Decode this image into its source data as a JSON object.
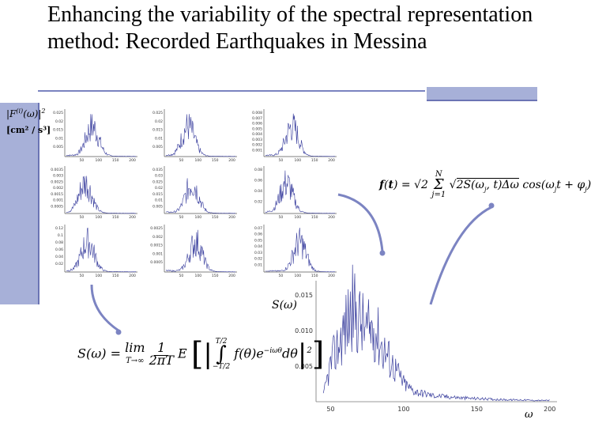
{
  "slide": {
    "title": "Enhancing the variability of the spectral representation method: Recorded Earthquakes in Messina"
  },
  "grid_axis_label": {
    "line1": "|F^(i)(ω)|²",
    "line2": "[cm² / s³]"
  },
  "formula_simulation": "f(t) = √2 Σ_{j=1}^{N} √(2S(ω_j, t)Δω) cos(ω_j t + φ_j)",
  "formula_psd": "S(ω) = lim_{T→∞} (1 / 2πT) E[ |∫_{-T/2}^{T/2} f(θ) e^{-iωθ} dθ|² ]",
  "colors": {
    "accent": "#a7b0d8",
    "curve": "#3a3f9e",
    "arrow": "#7c84c2"
  },
  "chart_data": [
    {
      "type": "line",
      "title": "",
      "ylabel": "S(ω)",
      "xlabel": "ω",
      "x_ticks": [
        "50",
        "100",
        "150",
        "200"
      ],
      "y_ticks": [
        "0.005",
        "0.010",
        "0.015"
      ],
      "xlim": [
        40,
        205
      ],
      "ylim": [
        0,
        0.017
      ],
      "series": [
        {
          "x": [
            45,
            50,
            55,
            60,
            65,
            70,
            75,
            80,
            85,
            90,
            95,
            100,
            105,
            110,
            120,
            130,
            140,
            150,
            160,
            170,
            180,
            190,
            200
          ],
          "values": [
            0.001,
            0.006,
            0.009,
            0.012,
            0.015,
            0.013,
            0.011,
            0.012,
            0.009,
            0.007,
            0.005,
            0.003,
            0.002,
            0.0015,
            0.001,
            0.0008,
            0.0006,
            0.0005,
            0.0004,
            0.0003,
            0.0003,
            0.0002,
            0.0002
          ]
        }
      ]
    }
  ],
  "small_panels": [
    {
      "y_ticks": [
        "0.025",
        "0.02",
        "0.015",
        "0.01",
        "0.005"
      ],
      "x_ticks": [
        "50",
        "100",
        "150",
        "200"
      ]
    },
    {
      "y_ticks": [
        "0.025",
        "0.02",
        "0.015",
        "0.01",
        "0.005"
      ],
      "x_ticks": [
        "50",
        "100",
        "150",
        "200"
      ]
    },
    {
      "y_ticks": [
        "0.008",
        "0.007",
        "0.006",
        "0.005",
        "0.004",
        "0.003",
        "0.002",
        "0.001"
      ],
      "x_ticks": [
        "50",
        "100",
        "150",
        "200"
      ]
    },
    {
      "y_ticks": [
        "0.0035",
        "0.003",
        "0.0025",
        "0.002",
        "0.0015",
        "0.001",
        "0.0005"
      ],
      "x_ticks": [
        "50",
        "100",
        "150",
        "200"
      ]
    },
    {
      "y_ticks": [
        "0.035",
        "0.03",
        "0.025",
        "0.02",
        "0.015",
        "0.01",
        "0.005"
      ],
      "x_ticks": [
        "50",
        "100",
        "150",
        "200"
      ]
    },
    {
      "y_ticks": [
        "0.08",
        "0.06",
        "0.04",
        "0.02"
      ],
      "x_ticks": [
        "50",
        "100",
        "150",
        "200"
      ]
    },
    {
      "y_ticks": [
        "0.12",
        "0.1",
        "0.08",
        "0.06",
        "0.04",
        "0.02"
      ],
      "x_ticks": [
        "50",
        "100",
        "150",
        "200"
      ]
    },
    {
      "y_ticks": [
        "0.0025",
        "0.002",
        "0.0015",
        "0.001",
        "0.0005"
      ],
      "x_ticks": [
        "50",
        "100",
        "150",
        "200"
      ]
    },
    {
      "y_ticks": [
        "0.07",
        "0.06",
        "0.05",
        "0.04",
        "0.03",
        "0.02",
        "0.01"
      ],
      "x_ticks": [
        "50",
        "100",
        "150",
        "200"
      ]
    }
  ]
}
